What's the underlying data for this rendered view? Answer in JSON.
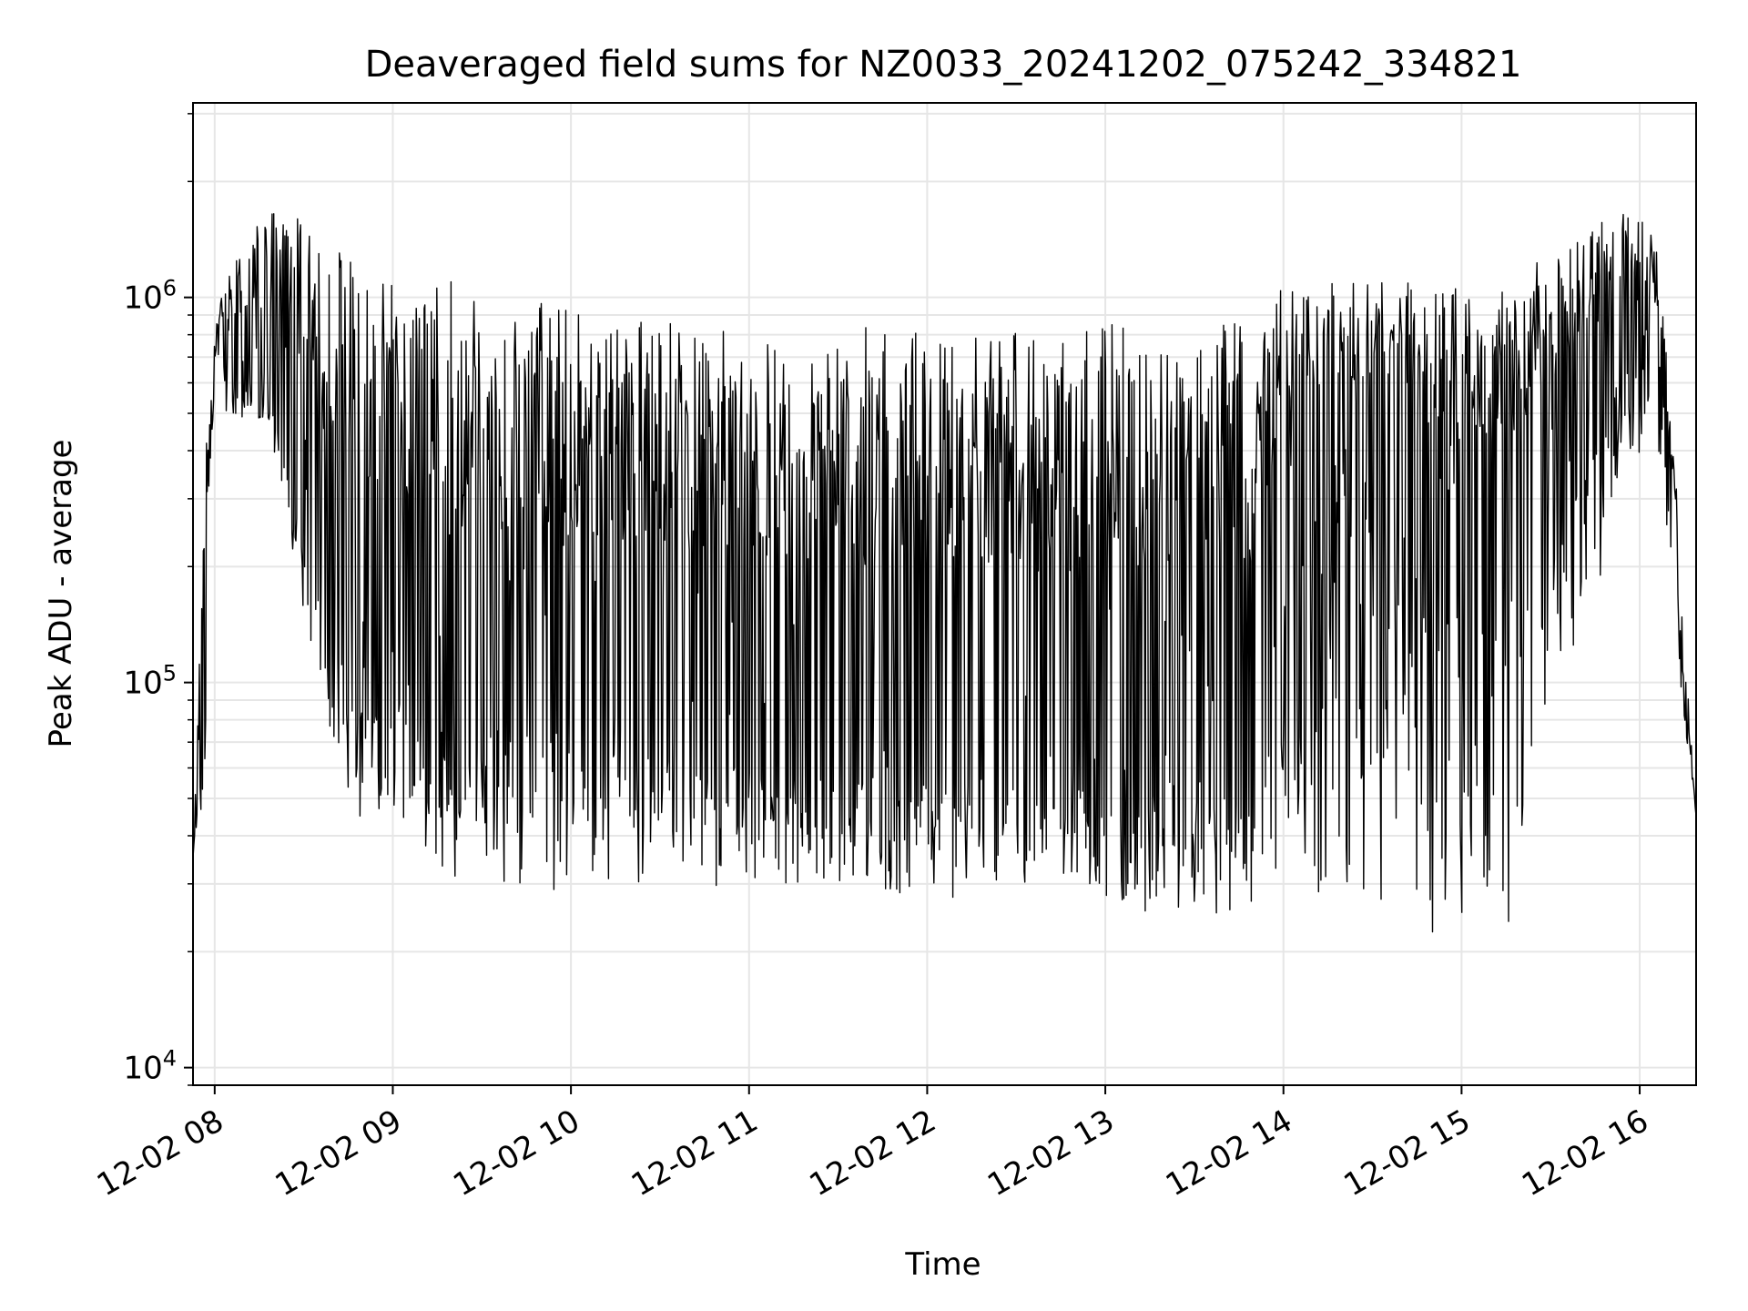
{
  "chart_data": {
    "type": "line",
    "title": "Deaveraged field sums for NZ0033_20241202_075242_334821",
    "xlabel": "Time",
    "ylabel": "Peak ADU - average",
    "yscale": "log",
    "ylim": [
      9000,
      3200000
    ],
    "xlim": [
      "2024-12-02T07:52:42",
      "2024-12-02T16:19:00"
    ],
    "grid": true,
    "x_ticks": [
      {
        "t": "2024-12-02T08:00",
        "label": "12-02 08"
      },
      {
        "t": "2024-12-02T09:00",
        "label": "12-02 09"
      },
      {
        "t": "2024-12-02T10:00",
        "label": "12-02 10"
      },
      {
        "t": "2024-12-02T11:00",
        "label": "12-02 11"
      },
      {
        "t": "2024-12-02T12:00",
        "label": "12-02 12"
      },
      {
        "t": "2024-12-02T13:00",
        "label": "12-02 13"
      },
      {
        "t": "2024-12-02T14:00",
        "label": "12-02 14"
      },
      {
        "t": "2024-12-02T15:00",
        "label": "12-02 15"
      },
      {
        "t": "2024-12-02T16:00",
        "label": "12-02 16"
      }
    ],
    "y_ticks": [
      {
        "value": 10000,
        "base": "10",
        "exp": "4"
      },
      {
        "value": 100000,
        "base": "10",
        "exp": "5"
      },
      {
        "value": 1000000,
        "base": "10",
        "exp": "6"
      }
    ],
    "series": [
      {
        "color": "#000000",
        "envelope": {
          "x": [
            "2024-12-02T07:52:42",
            "2024-12-02T07:57",
            "2024-12-02T08:00",
            "2024-12-02T08:03",
            "2024-12-02T08:10",
            "2024-12-02T08:20",
            "2024-12-02T08:30",
            "2024-12-02T08:40",
            "2024-12-02T08:50",
            "2024-12-02T09:00",
            "2024-12-02T09:20",
            "2024-12-02T09:40",
            "2024-12-02T10:00",
            "2024-12-02T10:30",
            "2024-12-02T11:00",
            "2024-12-02T11:30",
            "2024-12-02T12:00",
            "2024-12-02T12:30",
            "2024-12-02T13:00",
            "2024-12-02T13:30",
            "2024-12-02T13:50",
            "2024-12-02T14:00",
            "2024-12-02T14:20",
            "2024-12-02T14:40",
            "2024-12-02T15:00",
            "2024-12-02T15:20",
            "2024-12-02T15:40",
            "2024-12-02T15:55",
            "2024-12-02T16:05",
            "2024-12-02T16:10",
            "2024-12-02T16:15",
            "2024-12-02T16:19"
          ],
          "upper": [
            35000,
            400000,
            800000,
            1200000,
            1500000,
            1700000,
            1800000,
            1500000,
            1300000,
            1150000,
            1100000,
            1050000,
            950000,
            900000,
            850000,
            850000,
            820000,
            820000,
            850000,
            900000,
            950000,
            1100000,
            1100000,
            1100000,
            1100000,
            1150000,
            1500000,
            1700000,
            1500000,
            700000,
            130000,
            45000
          ],
          "lower": [
            35000,
            55000,
            700000,
            500000,
            450000,
            400000,
            120000,
            60000,
            40000,
            33000,
            30000,
            28000,
            28000,
            27000,
            28000,
            27000,
            26000,
            25000,
            24000,
            23000,
            22000,
            25000,
            22000,
            22000,
            22000,
            24000,
            120000,
            300000,
            500000,
            200000,
            80000,
            45000
          ],
          "typical_low": [
            35000,
            55000,
            700000,
            550000,
            500000,
            450000,
            200000,
            100000,
            60000,
            50000,
            45000,
            40000,
            38000,
            36000,
            35000,
            34000,
            33000,
            32000,
            31000,
            30000,
            30000,
            200000,
            300000,
            250000,
            100000,
            150000,
            350000,
            500000,
            600000,
            250000,
            100000,
            45000
          ]
        }
      }
    ]
  }
}
